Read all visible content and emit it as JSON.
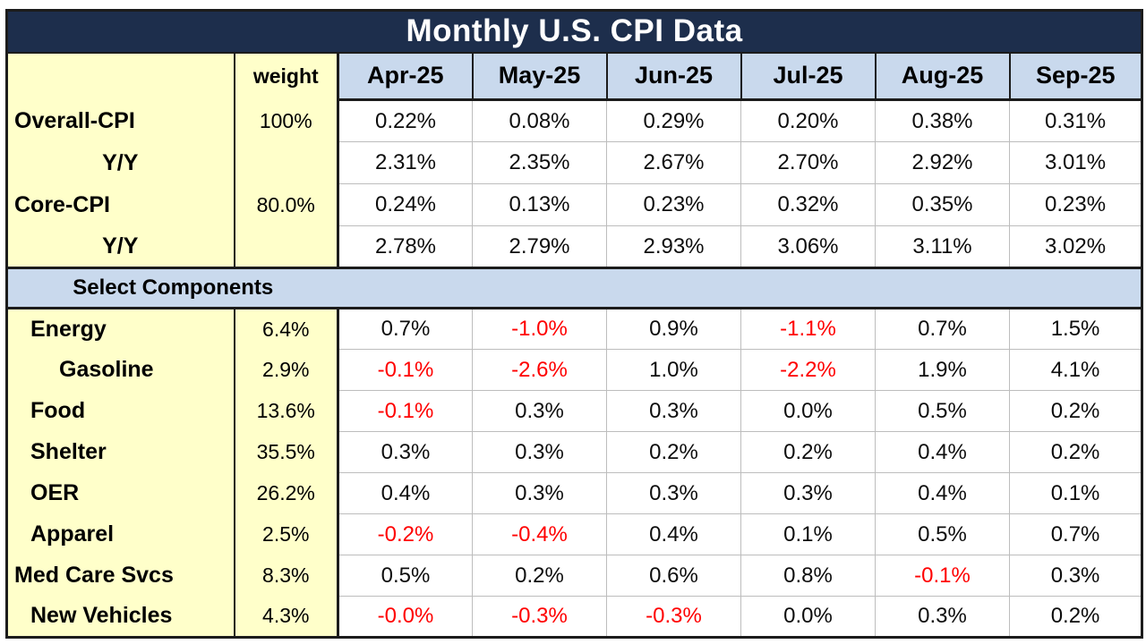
{
  "colors": {
    "title_bg": "#1d2e4c",
    "title_text": "#ffffff",
    "month_header_bg": "#c9d9ed",
    "section_bg": "#c9d9ed",
    "label_bg": "#ffffca",
    "cell_bg": "#ffffff",
    "negative_value": "#ff0000",
    "value_text": "#0d0d0d",
    "gridline": "#bdbdbd",
    "frame": "#1c1c1c"
  },
  "chart_data": {
    "type": "table",
    "title": "Monthly U.S. CPI Data",
    "weight_header": "weight",
    "months": [
      "Apr-25",
      "May-25",
      "Jun-25",
      "Jul-25",
      "Aug-25",
      "Sep-25"
    ],
    "section_label": "Select Components",
    "summary_rows": [
      {
        "label": "Overall-CPI",
        "weight": "100%",
        "indent": 0,
        "align": "left",
        "values": [
          "0.22%",
          "0.08%",
          "0.29%",
          "0.20%",
          "0.38%",
          "0.31%"
        ]
      },
      {
        "label": "Y/Y",
        "weight": "",
        "indent": 0,
        "align": "center",
        "values": [
          "2.31%",
          "2.35%",
          "2.67%",
          "2.70%",
          "2.92%",
          "3.01%"
        ]
      },
      {
        "label": "Core-CPI",
        "weight": "80.0%",
        "indent": 0,
        "align": "left",
        "values": [
          "0.24%",
          "0.13%",
          "0.23%",
          "0.32%",
          "0.35%",
          "0.23%"
        ]
      },
      {
        "label": "Y/Y",
        "weight": "",
        "indent": 0,
        "align": "center",
        "values": [
          "2.78%",
          "2.79%",
          "2.93%",
          "3.06%",
          "3.11%",
          "3.02%"
        ]
      }
    ],
    "component_rows": [
      {
        "label": "Energy",
        "weight": "6.4%",
        "indent": 1,
        "align": "left",
        "values": [
          "0.7%",
          "-1.0%",
          "0.9%",
          "-1.1%",
          "0.7%",
          "1.5%"
        ]
      },
      {
        "label": "Gasoline",
        "weight": "2.9%",
        "indent": 2,
        "align": "left",
        "values": [
          "-0.1%",
          "-2.6%",
          "1.0%",
          "-2.2%",
          "1.9%",
          "4.1%"
        ]
      },
      {
        "label": "Food",
        "weight": "13.6%",
        "indent": 1,
        "align": "left",
        "values": [
          "-0.1%",
          "0.3%",
          "0.3%",
          "0.0%",
          "0.5%",
          "0.2%"
        ]
      },
      {
        "label": "Shelter",
        "weight": "35.5%",
        "indent": 1,
        "align": "left",
        "values": [
          "0.3%",
          "0.3%",
          "0.2%",
          "0.2%",
          "0.4%",
          "0.2%"
        ]
      },
      {
        "label": "OER",
        "weight": "26.2%",
        "indent": 1,
        "align": "left",
        "values": [
          "0.4%",
          "0.3%",
          "0.3%",
          "0.3%",
          "0.4%",
          "0.1%"
        ]
      },
      {
        "label": "Apparel",
        "weight": "2.5%",
        "indent": 1,
        "align": "left",
        "values": [
          "-0.2%",
          "-0.4%",
          "0.4%",
          "0.1%",
          "0.5%",
          "0.7%"
        ]
      },
      {
        "label": "Med Care Svcs",
        "weight": "8.3%",
        "indent": 0,
        "align": "left",
        "values": [
          "0.5%",
          "0.2%",
          "0.6%",
          "0.8%",
          "-0.1%",
          "0.3%"
        ]
      },
      {
        "label": "New Vehicles",
        "weight": "4.3%",
        "indent": 1,
        "align": "left",
        "values": [
          "-0.0%",
          "-0.3%",
          "-0.3%",
          "0.0%",
          "0.3%",
          "0.2%"
        ]
      }
    ]
  }
}
